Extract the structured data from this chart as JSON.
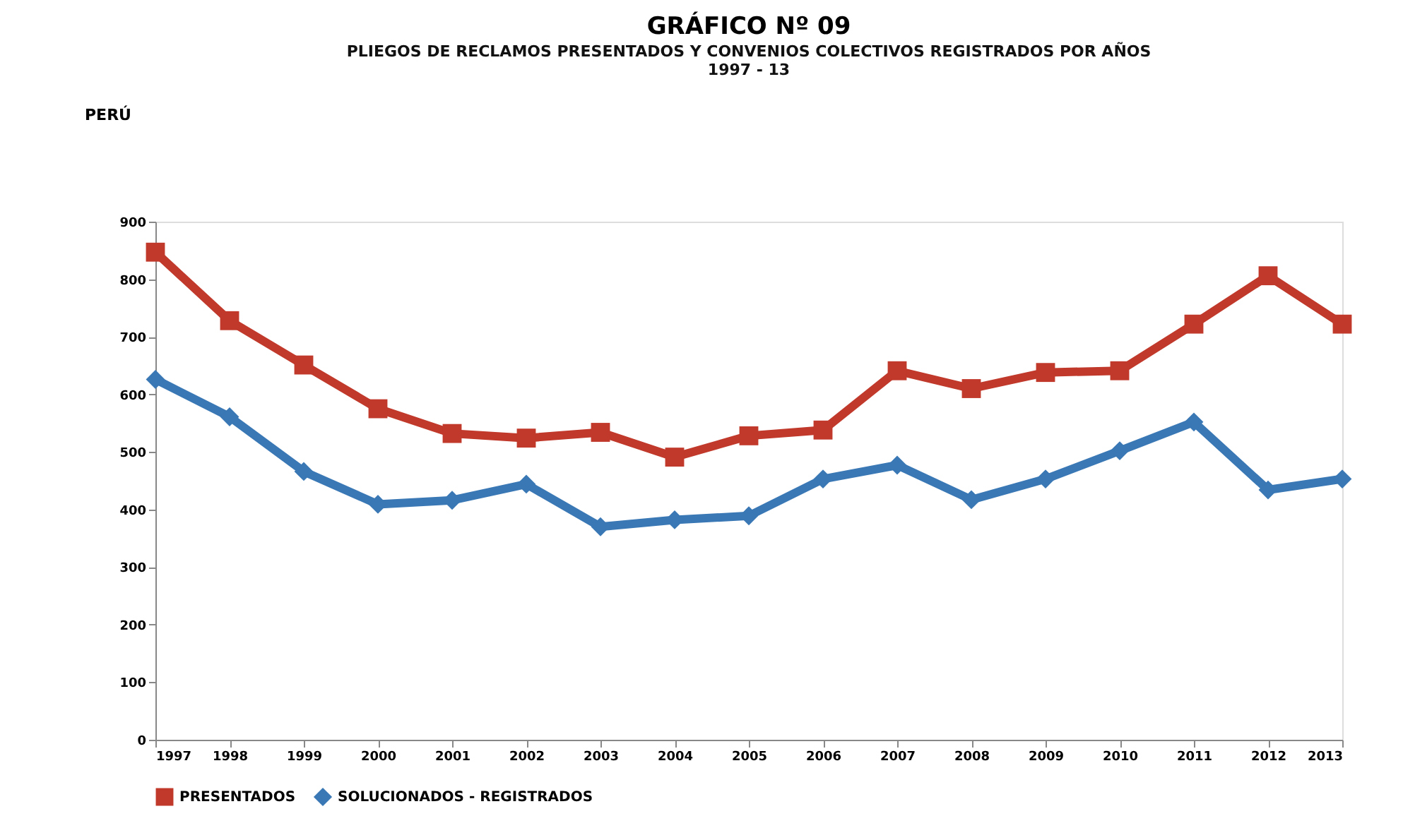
{
  "chart_data": {
    "type": "line",
    "title": "GRÁFICO Nº 09",
    "subtitle": "PLIEGOS DE RECLAMOS PRESENTADOS Y CONVENIOS COLECTIVOS REGISTRADOS POR AÑOS\n1997 - 13",
    "annotations": [
      "PERÚ"
    ],
    "categories": [
      "1997",
      "1998",
      "1999",
      "2000",
      "2001",
      "2002",
      "2003",
      "2004",
      "2005",
      "2006",
      "2007",
      "2008",
      "2009",
      "2010",
      "2011",
      "2012",
      "2013"
    ],
    "series": [
      {
        "name": "PRESENTADOS",
        "color": "#c0392b",
        "marker": "square",
        "values": [
          847,
          728,
          651,
          575,
          532,
          524,
          534,
          491,
          528,
          538,
          641,
          610,
          638,
          641,
          722,
          806,
          722
        ]
      },
      {
        "name": "SOLUCIONADOS - REGISTRADOS",
        "color": "#3a78b5",
        "marker": "diamond",
        "values": [
          626,
          561,
          466,
          409,
          416,
          444,
          370,
          382,
          389,
          453,
          477,
          417,
          453,
          502,
          552,
          434,
          453
        ]
      }
    ],
    "ylim": [
      0,
      900
    ],
    "yticks": [
      0,
      100,
      200,
      300,
      400,
      500,
      600,
      700,
      800,
      900
    ],
    "grid": false,
    "legend": "bottom",
    "line_style": "solid"
  }
}
